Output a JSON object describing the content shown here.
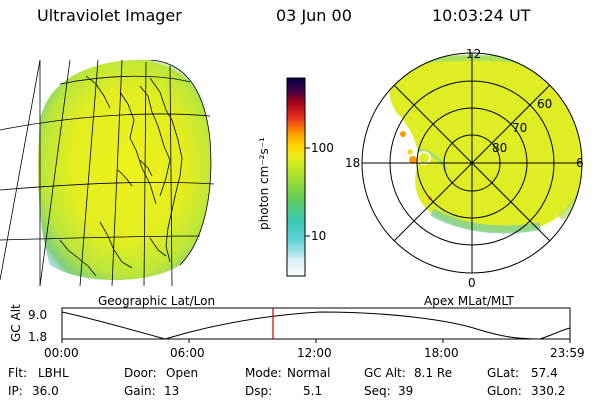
{
  "header": {
    "instrument": "Ultraviolet Imager",
    "date": "03 Jun 00",
    "time": "10:03:24 UT"
  },
  "panels": {
    "left_label": "Geographic Lat/Lon",
    "right_label": "Apex MLat/MLT"
  },
  "colorbar": {
    "unit_label": "photon cm⁻²s⁻¹",
    "ticks": [
      "100",
      "10"
    ]
  },
  "polar_plot": {
    "mlt_labels": [
      "12",
      "18",
      "6",
      "0"
    ],
    "mlat_labels": [
      "60",
      "70",
      "80"
    ]
  },
  "altitude_plot": {
    "ylabel": "GC Alt",
    "y_ticks": [
      "9.0",
      "1.8"
    ],
    "x_ticks": [
      "00:00",
      "06:00",
      "12:00",
      "18:00",
      "23:59"
    ],
    "cursor_time": "10:03"
  },
  "footer": {
    "row1": [
      {
        "label": "Flt:",
        "value": "LBHL"
      },
      {
        "label": "Door:",
        "value": "Open"
      },
      {
        "label": "Mode:",
        "value": "Normal"
      },
      {
        "label": "GC Alt:",
        "value": "8.1 Re"
      },
      {
        "label": "GLat:",
        "value": "57.4"
      }
    ],
    "row2": [
      {
        "label": "IP:",
        "value": "36.0"
      },
      {
        "label": "Gain:",
        "value": "13"
      },
      {
        "label": "Dsp:",
        "value": "5.1"
      },
      {
        "label": "Seq:",
        "value": "39"
      },
      {
        "label": "GLon:",
        "value": "330.2"
      }
    ]
  },
  "colors": {
    "emission_low": "#c8ecc8",
    "emission_mid": "#b8e830",
    "emission_high": "#e8f01a",
    "aurora_peak": "#ff9a00",
    "cursor_line": "#cc0000"
  }
}
